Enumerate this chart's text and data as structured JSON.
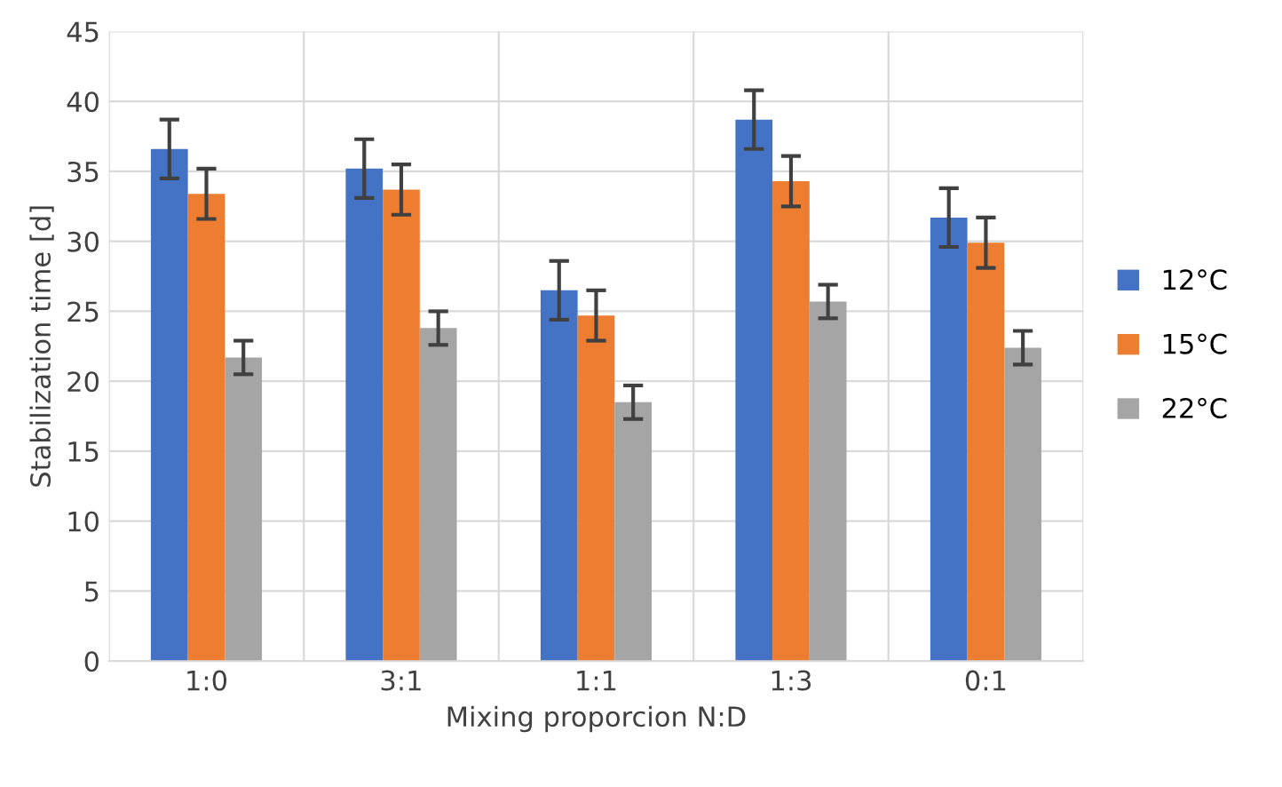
{
  "chart_data": {
    "type": "bar",
    "xlabel": "Mixing proporcion N:D",
    "ylabel": "Stabilization time [d]",
    "categories": [
      "1:0",
      "3:1",
      "1:1",
      "1:3",
      "0:1"
    ],
    "series": [
      {
        "name": "12°C",
        "color": "#4472c4",
        "values": [
          36.6,
          35.2,
          26.5,
          38.7,
          31.7
        ],
        "errors": [
          2.1,
          2.1,
          2.1,
          2.1,
          2.1
        ]
      },
      {
        "name": "15°C",
        "color": "#ed7d31",
        "values": [
          33.4,
          33.7,
          24.7,
          34.3,
          29.9
        ],
        "errors": [
          1.8,
          1.8,
          1.8,
          1.8,
          1.8
        ]
      },
      {
        "name": "22°C",
        "color": "#a5a5a5",
        "values": [
          21.7,
          23.8,
          18.5,
          25.7,
          22.4
        ],
        "errors": [
          1.2,
          1.2,
          1.2,
          1.2,
          1.2
        ]
      }
    ],
    "ylim": [
      0,
      45
    ],
    "yticks": [
      0,
      5,
      10,
      15,
      20,
      25,
      30,
      35,
      40,
      45
    ],
    "grid": true,
    "legend": "right"
  }
}
